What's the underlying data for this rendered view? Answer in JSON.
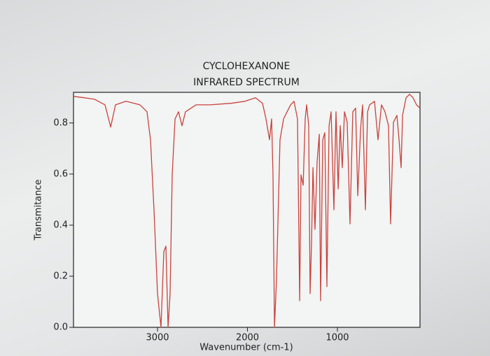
{
  "chart_data": {
    "type": "line",
    "title": "CYCLOHEXANONE",
    "subtitle": "INFRARED SPECTRUM",
    "xlabel": "Wavenumber (cm-1)",
    "ylabel": "Transmitance",
    "color": "#c9433c",
    "x": [
      3934,
      3817,
      3700,
      3584,
      3521,
      3467,
      3350,
      3195,
      3117,
      3078,
      3039,
      3000,
      2961,
      2930,
      2907,
      2883,
      2860,
      2837,
      2805,
      2767,
      2728,
      2689,
      2572,
      2416,
      2183,
      2027,
      1911,
      1833,
      1794,
      1755,
      1732,
      1716,
      1700,
      1677,
      1638,
      1599,
      1560,
      1521,
      1483,
      1444,
      1420,
      1405,
      1381,
      1358,
      1342,
      1319,
      1304,
      1288,
      1272,
      1249,
      1226,
      1202,
      1187,
      1163,
      1140,
      1117,
      1093,
      1070,
      1039,
      1016,
      992,
      969,
      946,
      922,
      891,
      860,
      829,
      798,
      774,
      743,
      720,
      689,
      665,
      642,
      588,
      549,
      510,
      471,
      432,
      409,
      377,
      339,
      315,
      292,
      276,
      237,
      198,
      160,
      121,
      82
    ],
    "values": [
      0.904,
      0.899,
      0.893,
      0.871,
      0.784,
      0.871,
      0.885,
      0.871,
      0.844,
      0.734,
      0.46,
      0.132,
      0.0,
      0.296,
      0.318,
      0.0,
      0.132,
      0.597,
      0.816,
      0.844,
      0.789,
      0.844,
      0.871,
      0.871,
      0.877,
      0.885,
      0.899,
      0.877,
      0.816,
      0.734,
      0.816,
      0.597,
      0.0,
      0.186,
      0.734,
      0.816,
      0.844,
      0.871,
      0.885,
      0.816,
      0.104,
      0.597,
      0.556,
      0.816,
      0.871,
      0.789,
      0.132,
      0.323,
      0.625,
      0.384,
      0.647,
      0.756,
      0.104,
      0.734,
      0.762,
      0.159,
      0.789,
      0.844,
      0.46,
      0.844,
      0.542,
      0.789,
      0.625,
      0.844,
      0.803,
      0.405,
      0.844,
      0.858,
      0.515,
      0.775,
      0.871,
      0.46,
      0.844,
      0.871,
      0.885,
      0.734,
      0.871,
      0.844,
      0.789,
      0.405,
      0.803,
      0.83,
      0.734,
      0.625,
      0.83,
      0.899,
      0.912,
      0.899,
      0.871,
      0.858
    ],
    "xlim": [
      3934,
      82
    ],
    "xticks": [
      3000,
      2000,
      1000
    ],
    "ylim": [
      0,
      0.92
    ],
    "yticks": [
      {
        "value": 0,
        "label": "0.0"
      },
      0.2,
      0.4,
      0.6,
      0.8
    ]
  }
}
